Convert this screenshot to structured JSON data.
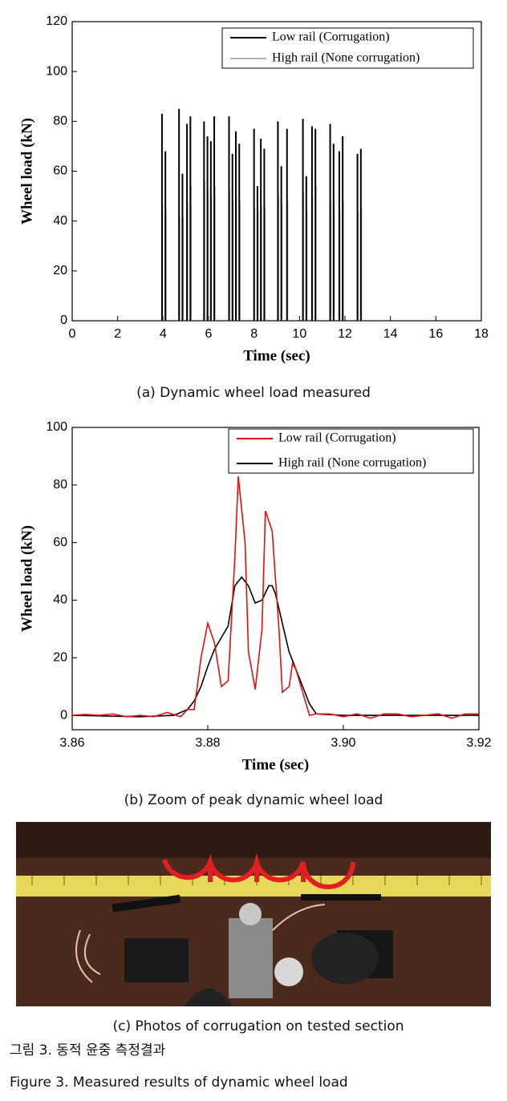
{
  "chart_data": [
    {
      "type": "spike",
      "xlabel": "Time (sec)",
      "ylabel": "Wheel load (kN)",
      "xlim": [
        0,
        18
      ],
      "xticks": [
        0,
        2,
        4,
        6,
        8,
        10,
        12,
        14,
        16,
        18
      ],
      "ylim": [
        0,
        120
      ],
      "yticks": [
        0,
        20,
        40,
        60,
        80,
        100,
        120
      ],
      "legend": "upper right",
      "series": [
        {
          "name": "Low rail (Corrugation)",
          "color": "#000000",
          "x": [
            3.95,
            4.1,
            4.7,
            4.85,
            5.05,
            5.2,
            5.8,
            5.95,
            6.1,
            6.25,
            6.9,
            7.05,
            7.2,
            7.35,
            8.0,
            8.15,
            8.3,
            8.45,
            9.05,
            9.2,
            9.45,
            10.15,
            10.3,
            10.55,
            10.7,
            11.35,
            11.5,
            11.75,
            11.9,
            12.55,
            12.7
          ],
          "values": [
            83,
            68,
            85,
            59,
            79,
            82,
            80,
            74,
            72,
            82,
            82,
            67,
            76,
            71,
            77,
            54,
            73,
            69,
            80,
            62,
            77,
            81,
            58,
            78,
            77,
            79,
            71,
            68,
            74,
            67,
            69
          ]
        },
        {
          "name": "High rail (None corrugation)",
          "color": "#b0b0b0",
          "x": [
            3.97,
            4.12,
            4.72,
            4.87,
            5.07,
            5.22,
            5.82,
            5.97,
            6.12,
            6.27,
            6.92,
            7.07,
            7.22,
            7.37,
            8.02,
            8.17,
            8.32,
            8.47,
            9.07,
            9.22,
            9.47,
            10.17,
            10.32,
            10.57,
            10.72,
            11.37,
            11.52,
            11.77,
            11.92,
            12.57,
            12.72
          ],
          "values": [
            47,
            45,
            42,
            42,
            48,
            54,
            56,
            52,
            50,
            54,
            52,
            48,
            50,
            48,
            45,
            44,
            46,
            45,
            50,
            47,
            48,
            52,
            44,
            50,
            54,
            48,
            46,
            44,
            48,
            44,
            45
          ]
        }
      ]
    },
    {
      "type": "line",
      "xlabel": "Time (sec)",
      "ylabel": "Wheel load (kN)",
      "xlim": [
        3.86,
        3.92
      ],
      "xticks": [
        3.86,
        3.88,
        {
          "value": 3.9,
          "label": "3.90"
        },
        3.92
      ],
      "ylim": [
        -5,
        100
      ],
      "yticks": [
        0,
        20,
        40,
        60,
        80,
        100
      ],
      "legend": "upper right",
      "series": [
        {
          "name": "Low rail (Corrugation)",
          "color": "#e01010",
          "x": [
            3.86,
            3.862,
            3.864,
            3.866,
            3.868,
            3.87,
            3.872,
            3.874,
            3.876,
            3.877,
            3.878,
            3.879,
            3.88,
            3.881,
            3.882,
            3.883,
            3.884,
            3.8845,
            3.8855,
            3.886,
            3.887,
            3.888,
            3.8885,
            3.8895,
            3.8905,
            3.891,
            3.892,
            3.8925,
            3.893,
            3.894,
            3.895,
            3.896,
            3.898,
            3.9,
            3.902,
            3.904,
            3.906,
            3.908,
            3.91,
            3.912,
            3.914,
            3.916,
            3.918,
            3.92
          ],
          "values": [
            0,
            0.3,
            0,
            0.5,
            -0.5,
            0,
            -0.5,
            1,
            -0.5,
            2,
            2,
            20,
            32,
            25,
            10,
            12,
            55,
            83,
            60,
            22,
            9,
            30,
            71,
            64,
            30,
            8,
            10,
            18,
            16,
            8,
            0,
            0.5,
            0.5,
            -0.5,
            0.5,
            -1,
            0.5,
            0.5,
            -0.5,
            0,
            0.5,
            -1,
            0.5,
            0.5
          ]
        },
        {
          "name": "High rail (None corrugation)",
          "color": "#000000",
          "x": [
            3.86,
            3.87,
            3.875,
            3.877,
            3.878,
            3.879,
            3.88,
            3.881,
            3.882,
            3.883,
            3.884,
            3.885,
            3.886,
            3.887,
            3.888,
            3.889,
            3.8895,
            3.89,
            3.891,
            3.892,
            3.893,
            3.894,
            3.895,
            3.896,
            3.9,
            3.91,
            3.92
          ],
          "values": [
            0,
            -0.5,
            0,
            2,
            5,
            10,
            17,
            23,
            27,
            31,
            45,
            48,
            45,
            39,
            40,
            45,
            45,
            42,
            32,
            22,
            16,
            10,
            4,
            0.5,
            0,
            0,
            0
          ]
        }
      ]
    }
  ],
  "captions": {
    "a": "(a) Dynamic wheel load measured",
    "b": "(b) Zoom of peak dynamic wheel load",
    "c": "(c) Photos of corrugation on tested section"
  },
  "figure": {
    "label_ko": "그림 3. 동적 윤중 측정결과",
    "label_en": "Figure 3. Measured results of dynamic wheel load"
  }
}
